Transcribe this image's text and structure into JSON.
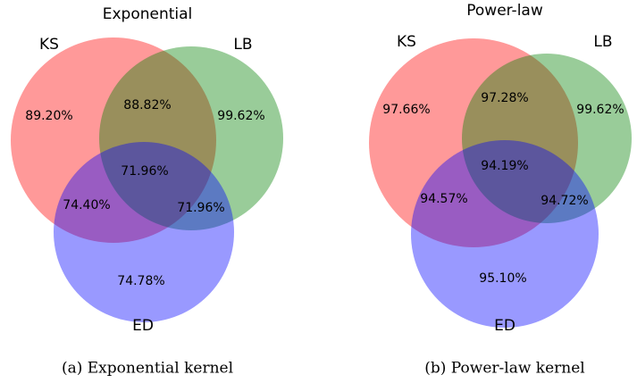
{
  "panels": [
    {
      "title": "Exponential",
      "caption": "(a) Exponential kernel",
      "sets": [
        "KS",
        "LB",
        "ED"
      ],
      "regions": [
        "89.20%",
        "88.82%",
        "99.62%",
        "71.96%",
        "74.40%",
        "71.96%",
        "74.78%"
      ]
    },
    {
      "title": "Power-law",
      "caption": "(b) Power-law kernel",
      "sets": [
        "KS",
        "LB",
        "ED"
      ],
      "regions": [
        "97.66%",
        "97.28%",
        "99.62%",
        "94.19%",
        "94.57%",
        "94.72%",
        "95.10%"
      ]
    }
  ]
}
